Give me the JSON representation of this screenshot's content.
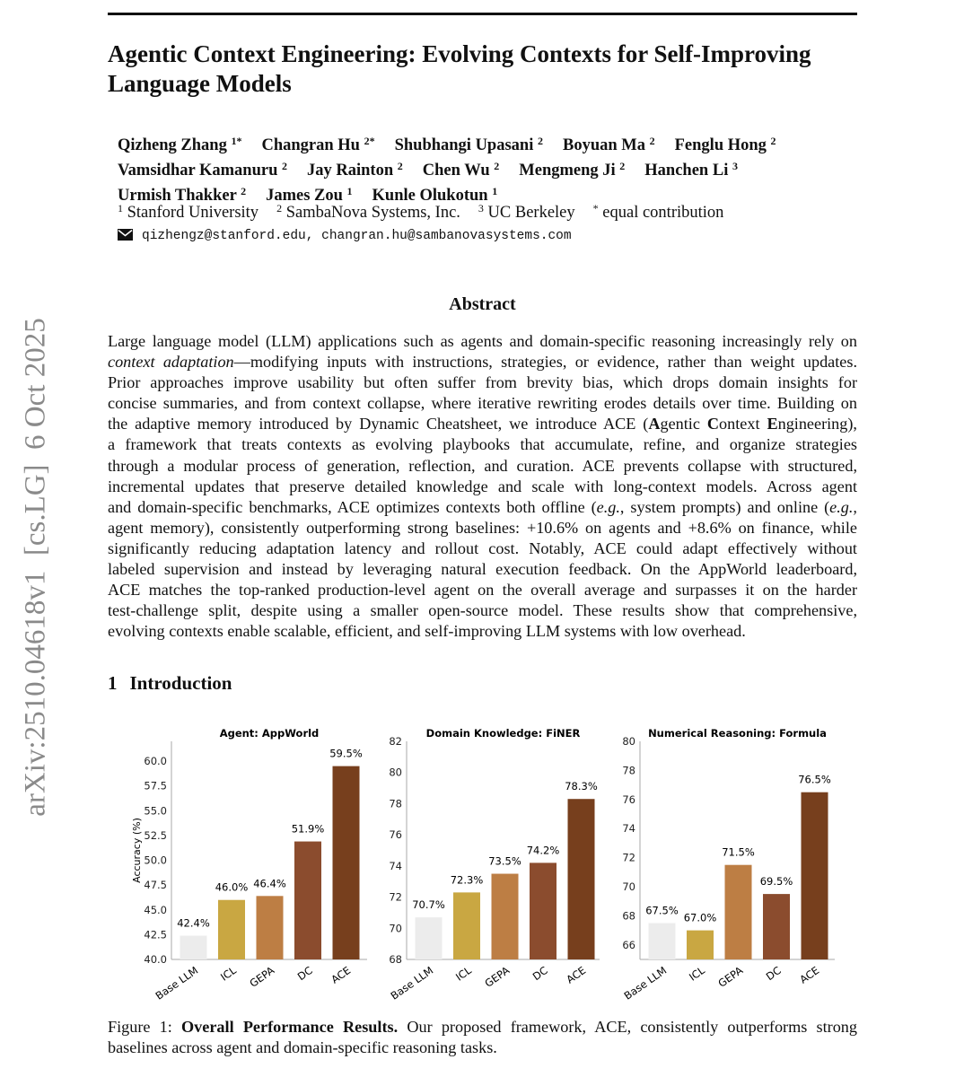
{
  "sidebar_stamp": "arXiv:2510.04618v1  [cs.LG]  6 Oct 2025",
  "title": "Agentic Context Engineering: Evolving Contexts for Self-Improving Language Models",
  "authors": [
    [
      {
        "name": "Qizheng Zhang",
        "sup": "1*"
      },
      {
        "name": "Changran Hu",
        "sup": "2*"
      },
      {
        "name": "Shubhangi Upasani",
        "sup": "2"
      },
      {
        "name": "Boyuan Ma",
        "sup": "2"
      },
      {
        "name": "Fenglu Hong",
        "sup": "2"
      }
    ],
    [
      {
        "name": "Vamsidhar Kamanuru",
        "sup": "2"
      },
      {
        "name": "Jay Rainton",
        "sup": "2"
      },
      {
        "name": "Chen Wu",
        "sup": "2"
      },
      {
        "name": "Mengmeng Ji",
        "sup": "2"
      },
      {
        "name": "Hanchen Li",
        "sup": "3"
      }
    ],
    [
      {
        "name": "Urmish Thakker",
        "sup": "2"
      },
      {
        "name": "James Zou",
        "sup": "1"
      },
      {
        "name": "Kunle Olukotun",
        "sup": "1"
      }
    ]
  ],
  "affiliations": [
    {
      "sup": "1",
      "name": "Stanford University"
    },
    {
      "sup": "2",
      "name": "SambaNova Systems, Inc."
    },
    {
      "sup": "3",
      "name": "UC Berkeley"
    },
    {
      "sup": "*",
      "name": "equal contribution"
    }
  ],
  "email": {
    "icon": "envelope-icon",
    "text": "qizhengz@stanford.edu, changran.hu@sambanovasystems.com"
  },
  "abstract": {
    "heading": "Abstract",
    "lines": [
      [
        [
          "Large language model (LLM) applications such as agents and domain-specific reasoning increasingly rely on",
          ""
        ]
      ],
      [
        [
          "context adaptation",
          "i"
        ],
        [
          "—modifying inputs with instructions, strategies, or evidence, rather than weight updates.",
          ""
        ]
      ],
      [
        [
          "Prior approaches improve usability but often suffer from brevity bias, which drops domain insights for",
          ""
        ]
      ],
      [
        [
          "concise summaries, and from context collapse, where iterative rewriting erodes details over time. Building on",
          ""
        ]
      ],
      [
        [
          "the adaptive memory introduced by Dynamic Cheatsheet, we introduce ACE (",
          ""
        ],
        [
          "A",
          "b"
        ],
        [
          "gentic ",
          ""
        ],
        [
          "C",
          "b"
        ],
        [
          "ontext ",
          ""
        ],
        [
          "E",
          "b"
        ],
        [
          "ngineering),",
          ""
        ]
      ],
      [
        [
          "a framework that treats contexts as evolving playbooks that accumulate, refine, and organize strategies",
          ""
        ]
      ],
      [
        [
          "through a modular process of generation, reflection, and curation. ACE prevents collapse with structured,",
          ""
        ]
      ],
      [
        [
          "incremental updates that preserve detailed knowledge and scale with long-context models. Across agent",
          ""
        ]
      ],
      [
        [
          "and domain-specific benchmarks, ACE optimizes contexts both offline (",
          ""
        ],
        [
          "e.g.",
          "i"
        ],
        [
          ", system prompts) and online (",
          ""
        ],
        [
          "e.g.,",
          "i"
        ]
      ],
      [
        [
          "agent memory), consistently outperforming strong baselines: +10.6% on agents and +8.6% on finance, while",
          ""
        ]
      ],
      [
        [
          "significantly reducing adaptation latency and rollout cost. Notably, ACE could adapt effectively without",
          ""
        ]
      ],
      [
        [
          "labeled supervision and instead by leveraging natural execution feedback. On the AppWorld leaderboard,",
          ""
        ]
      ],
      [
        [
          "ACE matches the top-ranked production-level agent on the overall average and surpasses it on the harder",
          ""
        ]
      ],
      [
        [
          "test-challenge split, despite using a smaller open-source model. These results show that comprehensive,",
          ""
        ]
      ],
      [
        [
          "evolving contexts enable scalable, efficient, and self-improving LLM systems with low overhead.",
          ""
        ]
      ]
    ]
  },
  "section": {
    "number": "1",
    "title": "Introduction"
  },
  "chart_data": [
    {
      "type": "bar",
      "title": "Agent: AppWorld",
      "ylabel": "Accuracy (%)",
      "xlabel": "",
      "categories": [
        "Base LLM",
        "ICL",
        "GEPA",
        "DC",
        "ACE"
      ],
      "values": [
        42.4,
        46.0,
        46.4,
        51.9,
        59.5
      ],
      "labels": [
        "42.4%",
        "46.0%",
        "46.4%",
        "51.9%",
        "59.5%"
      ],
      "ylim": [
        40,
        62
      ],
      "yticks": [
        "40.0",
        "42.5",
        "45.0",
        "47.5",
        "50.0",
        "52.5",
        "55.0",
        "57.5",
        "60.0"
      ],
      "grid": false
    },
    {
      "type": "bar",
      "title": "Domain Knowledge: FiNER",
      "ylabel": "",
      "xlabel": "",
      "categories": [
        "Base LLM",
        "ICL",
        "GEPA",
        "DC",
        "ACE"
      ],
      "values": [
        70.7,
        72.3,
        73.5,
        74.2,
        78.3
      ],
      "labels": [
        "70.7%",
        "72.3%",
        "73.5%",
        "74.2%",
        "78.3%"
      ],
      "ylim": [
        68,
        82
      ],
      "yticks": [
        "68",
        "70",
        "72",
        "74",
        "76",
        "78",
        "80",
        "82"
      ],
      "grid": false
    },
    {
      "type": "bar",
      "title": "Numerical Reasoning: Formula",
      "ylabel": "",
      "xlabel": "",
      "categories": [
        "Base LLM",
        "ICL",
        "GEPA",
        "DC",
        "ACE"
      ],
      "values": [
        67.5,
        67.0,
        71.5,
        69.5,
        76.5
      ],
      "labels": [
        "67.5%",
        "67.0%",
        "71.5%",
        "69.5%",
        "76.5%"
      ],
      "ylim": [
        65,
        80
      ],
      "yticks": [
        "66",
        "68",
        "70",
        "72",
        "74",
        "76",
        "78",
        "80"
      ],
      "grid": false
    }
  ],
  "bar_colors": [
    "#ececec",
    "#c9a742",
    "#bd7e44",
    "#8b4c2e",
    "#773f1d"
  ],
  "caption": {
    "label": "Figure 1: ",
    "bold": "Overall Performance Results.",
    "text1": " Our proposed framework, ACE, consistently outperforms strong",
    "text2": "baselines across agent and domain-specific reasoning tasks."
  }
}
